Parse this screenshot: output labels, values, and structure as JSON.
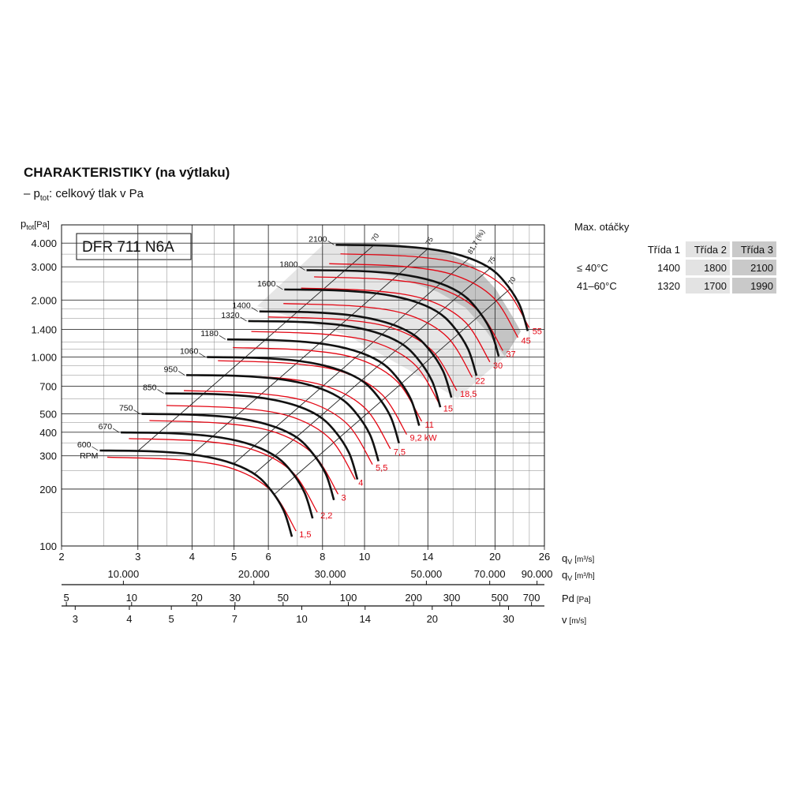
{
  "chart_data": {
    "type": "line",
    "title": "CHARAKTERISTIKY (na výtlaku)",
    "subtitle": {
      "prefix": "– p",
      "sub": "tot",
      "text": ": celkový tlak v Pa"
    },
    "model": "DFR 711 N6A",
    "y_label": {
      "symbol": "p",
      "sub": "tot",
      "unit": "[Pa]"
    },
    "x_label": {
      "symbol": "q",
      "sub": "V",
      "unit": "[m³/s]"
    },
    "log_x": true,
    "log_y": true,
    "grid": true,
    "xlim": [
      2,
      26
    ],
    "ylim": [
      100,
      5000
    ],
    "xticks": [
      2,
      3,
      4,
      5,
      6,
      8,
      10,
      14,
      20,
      26
    ],
    "yticks": [
      100,
      200,
      300,
      400,
      500,
      700,
      {
        "value": 1000,
        "label": "1.000"
      },
      {
        "value": 1400,
        "label": "1.400"
      },
      {
        "value": 2000,
        "label": "2.000"
      },
      {
        "value": 3000,
        "label": "3.000"
      },
      {
        "value": 4000,
        "label": "4.000"
      }
    ],
    "x_minor_ticks": [
      2.5,
      3.5,
      4.5,
      7,
      9,
      12,
      16,
      18,
      22,
      24
    ],
    "y_minor_ticks": [
      150,
      250,
      350,
      450,
      600,
      800,
      900,
      1100,
      1200,
      1600,
      1800,
      2500,
      3500
    ],
    "rpm_unit": "RPM",
    "series": [
      {
        "name": "600",
        "color": "#111111",
        "x": [
          2.45,
          3.2,
          4.0,
          4.8,
          5.5,
          6.0,
          6.5,
          6.8
        ],
        "values": [
          320,
          317,
          305,
          280,
          245,
          205,
          155,
          112
        ]
      },
      {
        "name": "670",
        "color": "#111111",
        "x": [
          2.74,
          3.57,
          4.47,
          5.36,
          6.14,
          6.7,
          7.26,
          7.59
        ],
        "values": [
          399,
          395,
          380,
          349,
          305,
          256,
          193,
          140
        ]
      },
      {
        "name": "750",
        "color": "#111111",
        "x": [
          3.06,
          4.0,
          5.0,
          6.0,
          6.88,
          7.5,
          8.13,
          8.5
        ],
        "values": [
          500,
          495,
          477,
          438,
          383,
          320,
          242,
          175
        ]
      },
      {
        "name": "850",
        "color": "#111111",
        "x": [
          3.47,
          4.53,
          5.67,
          6.8,
          7.79,
          8.5,
          9.21,
          9.63
        ],
        "values": [
          642,
          636,
          612,
          562,
          492,
          411,
          311,
          225
        ]
      },
      {
        "name": "950",
        "color": "#111111",
        "x": [
          3.88,
          5.07,
          6.33,
          7.6,
          8.71,
          9.5,
          10.29,
          10.77
        ],
        "values": [
          802,
          795,
          765,
          702,
          614,
          514,
          389,
          281
        ]
      },
      {
        "name": "1060",
        "color": "#111111",
        "x": [
          4.33,
          5.65,
          7.07,
          8.48,
          9.72,
          10.6,
          11.48,
          12.01
        ],
        "values": [
          999,
          989,
          952,
          874,
          765,
          640,
          484,
          350
        ]
      },
      {
        "name": "1180",
        "color": "#111111",
        "x": [
          4.82,
          6.29,
          7.87,
          9.44,
          10.82,
          11.8,
          12.78,
          13.37
        ],
        "values": [
          1238,
          1226,
          1180,
          1083,
          948,
          793,
          600,
          433
        ]
      },
      {
        "name": "1320",
        "color": "#111111",
        "x": [
          5.39,
          7.04,
          8.8,
          10.56,
          12.1,
          13.2,
          14.3,
          14.96
        ],
        "values": [
          1549,
          1534,
          1476,
          1355,
          1186,
          992,
          750,
          542
        ]
      },
      {
        "name": "1400",
        "color": "#111111",
        "x": [
          5.72,
          7.47,
          9.33,
          11.2,
          12.83,
          14.0,
          15.17,
          15.87
        ],
        "values": [
          1742,
          1726,
          1661,
          1524,
          1334,
          1116,
          844,
          610
        ]
      },
      {
        "name": "1600",
        "color": "#111111",
        "x": [
          6.53,
          8.53,
          10.67,
          12.8,
          14.67,
          16.0,
          17.33,
          18.13
        ],
        "values": [
          2276,
          2254,
          2169,
          1991,
          1742,
          1458,
          1102,
          796
        ]
      },
      {
        "name": "1800",
        "color": "#111111",
        "x": [
          7.35,
          9.6,
          12.0,
          14.4,
          16.5,
          18.0,
          19.5,
          20.4
        ],
        "values": [
          2880,
          2853,
          2745,
          2520,
          2205,
          1845,
          1395,
          1008
        ]
      },
      {
        "name": "2100",
        "color": "#111111",
        "x": [
          8.58,
          11.2,
          14.0,
          16.8,
          19.25,
          21.0,
          22.75,
          23.8
        ],
        "values": [
          3920,
          3883,
          3736,
          3430,
          3001,
          2511,
          1899,
          1372
        ]
      }
    ],
    "power_series": [
      {
        "name": "1,5",
        "color": "#e30613",
        "x": [
          2.55,
          3.8,
          5.0,
          6.1,
          6.95
        ],
        "values": [
          295,
          285,
          255,
          195,
          120
        ]
      },
      {
        "name": "2,2",
        "color": "#e30613",
        "x": [
          2.86,
          4.26,
          5.6,
          6.83,
          7.78
        ],
        "values": [
          370,
          358,
          320,
          245,
          151
        ]
      },
      {
        "name": "3",
        "color": "#e30613",
        "x": [
          3.19,
          4.75,
          6.25,
          7.63,
          8.69
        ],
        "values": [
          461,
          445,
          398,
          305,
          188
        ]
      },
      {
        "name": "4",
        "color": "#e30613",
        "x": [
          3.49,
          5.21,
          6.85,
          8.36,
          9.52
        ],
        "values": [
          554,
          535,
          479,
          366,
          225
        ]
      },
      {
        "name": "5,5",
        "color": "#e30613",
        "x": [
          3.83,
          5.7,
          7.5,
          9.15,
          10.43
        ],
        "values": [
          664,
          641,
          574,
          439,
          270
        ]
      },
      {
        "name": "7,5",
        "color": "#e30613",
        "x": [
          4.21,
          6.27,
          8.25,
          10.07,
          11.47
        ],
        "values": [
          803,
          776,
          694,
          531,
          327
        ]
      },
      {
        "name": "9,2 kW",
        "color": "#e30613",
        "x": [
          4.59,
          6.84,
          9.0,
          10.98,
          12.51
        ],
        "values": [
          956,
          923,
          826,
          632,
          389
        ]
      },
      {
        "name": "11",
        "color": "#e30613",
        "x": [
          4.97,
          7.41,
          9.75,
          11.9,
          13.55
        ],
        "values": [
          1122,
          1084,
          970,
          741,
          456
        ]
      },
      {
        "name": "15",
        "color": "#e30613",
        "x": [
          5.48,
          8.17,
          10.75,
          13.12,
          14.94
        ],
        "values": [
          1364,
          1317,
          1179,
          901,
          555
        ]
      },
      {
        "name": "18,5",
        "color": "#e30613",
        "x": [
          5.99,
          8.93,
          11.75,
          14.34,
          16.33
        ],
        "values": [
          1629,
          1574,
          1408,
          1077,
          663
        ]
      },
      {
        "name": "22",
        "color": "#e30613",
        "x": [
          6.5,
          9.69,
          12.75,
          15.56,
          17.72
        ],
        "values": [
          1918,
          1853,
          1658,
          1268,
          780
        ]
      },
      {
        "name": "30",
        "color": "#e30613",
        "x": [
          7.14,
          10.64,
          14.0,
          17.08,
          19.46
        ],
        "values": [
          2313,
          2234,
          1999,
          1529,
          941
        ]
      },
      {
        "name": "37",
        "color": "#e30613",
        "x": [
          7.65,
          11.4,
          15.0,
          18.3,
          20.85
        ],
        "values": [
          2655,
          2565,
          2295,
          1755,
          1080
        ]
      },
      {
        "name": "45",
        "color": "#e30613",
        "x": [
          8.29,
          12.35,
          16.25,
          19.83,
          22.59
        ],
        "values": [
          3116,
          3010,
          2693,
          2060,
          1268
        ]
      },
      {
        "name": "55",
        "color": "#e30613",
        "x": [
          8.8,
          13.11,
          17.25,
          21.05,
          23.98
        ],
        "values": [
          3511,
          3392,
          3035,
          2321,
          1428
        ]
      }
    ],
    "efficiency_lines": [
      {
        "name": "70",
        "x": [
          3.0,
          10.5
        ],
        "values": [
          318,
          3900
        ]
      },
      {
        "name": "75",
        "x": [
          4.0,
          14.0
        ],
        "values": [
          305,
          3736
        ]
      },
      {
        "name": "81,7 (%)",
        "x": [
          5.0,
          17.5
        ],
        "values": [
          273,
          3350
        ]
      },
      {
        "name": "75",
        "x": [
          5.57,
          19.5
        ],
        "values": [
          241,
          2950
        ]
      },
      {
        "name": "70",
        "x": [
          6.2,
          21.7
        ],
        "values": [
          188,
          2300
        ]
      }
    ],
    "secondary_axes": [
      {
        "symbol": "q",
        "sub": "V",
        "unit": "[m³/h]",
        "xlim": [
          7200,
          93600
        ],
        "xticks": [
          {
            "value": 10000,
            "label": "10.000"
          },
          {
            "value": 20000,
            "label": "20.000"
          },
          {
            "value": 30000,
            "label": "30.000"
          },
          {
            "value": 50000,
            "label": "50.000"
          },
          {
            "value": 70000,
            "label": "70.000"
          },
          {
            "value": 90000,
            "label": "90.000"
          }
        ]
      },
      {
        "symbol": "Pd",
        "unit": "[Pa]",
        "xlim": [
          4.75,
          803
        ],
        "xticks": [
          5,
          10,
          20,
          30,
          50,
          100,
          200,
          300,
          500,
          700
        ]
      },
      {
        "symbol": "v",
        "unit": "[m/s]",
        "xlim": [
          2.79,
          36.3
        ],
        "xticks": [
          3,
          4,
          5,
          7,
          10,
          14,
          20,
          30
        ]
      }
    ]
  },
  "table": {
    "title": "Max. otáčky",
    "headers": [
      "Třída 1",
      "Třída 2",
      "Třída 3"
    ],
    "rows": [
      [
        "≤ 40°C",
        1400,
        1800,
        2100
      ],
      [
        "41–60°C",
        1320,
        1700,
        1990
      ]
    ]
  }
}
